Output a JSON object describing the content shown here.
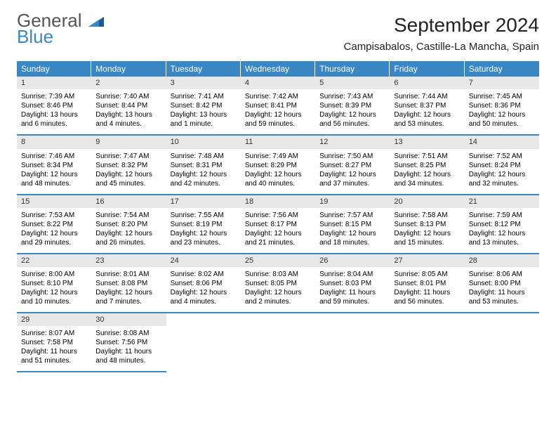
{
  "logo": {
    "word1": "General",
    "word2": "Blue"
  },
  "header": {
    "title": "September 2024",
    "subtitle": "Campisabalos, Castille-La Mancha, Spain"
  },
  "colors": {
    "accent": "#3a87c6",
    "headerText": "#ffffff",
    "dayBar": "#e8e8e8",
    "background": "#ffffff"
  },
  "weekdays": [
    "Sunday",
    "Monday",
    "Tuesday",
    "Wednesday",
    "Thursday",
    "Friday",
    "Saturday"
  ],
  "days": [
    {
      "n": "1",
      "sunrise": "Sunrise: 7:39 AM",
      "sunset": "Sunset: 8:46 PM",
      "daylight": "Daylight: 13 hours and 6 minutes."
    },
    {
      "n": "2",
      "sunrise": "Sunrise: 7:40 AM",
      "sunset": "Sunset: 8:44 PM",
      "daylight": "Daylight: 13 hours and 4 minutes."
    },
    {
      "n": "3",
      "sunrise": "Sunrise: 7:41 AM",
      "sunset": "Sunset: 8:42 PM",
      "daylight": "Daylight: 13 hours and 1 minute."
    },
    {
      "n": "4",
      "sunrise": "Sunrise: 7:42 AM",
      "sunset": "Sunset: 8:41 PM",
      "daylight": "Daylight: 12 hours and 59 minutes."
    },
    {
      "n": "5",
      "sunrise": "Sunrise: 7:43 AM",
      "sunset": "Sunset: 8:39 PM",
      "daylight": "Daylight: 12 hours and 56 minutes."
    },
    {
      "n": "6",
      "sunrise": "Sunrise: 7:44 AM",
      "sunset": "Sunset: 8:37 PM",
      "daylight": "Daylight: 12 hours and 53 minutes."
    },
    {
      "n": "7",
      "sunrise": "Sunrise: 7:45 AM",
      "sunset": "Sunset: 8:36 PM",
      "daylight": "Daylight: 12 hours and 50 minutes."
    },
    {
      "n": "8",
      "sunrise": "Sunrise: 7:46 AM",
      "sunset": "Sunset: 8:34 PM",
      "daylight": "Daylight: 12 hours and 48 minutes."
    },
    {
      "n": "9",
      "sunrise": "Sunrise: 7:47 AM",
      "sunset": "Sunset: 8:32 PM",
      "daylight": "Daylight: 12 hours and 45 minutes."
    },
    {
      "n": "10",
      "sunrise": "Sunrise: 7:48 AM",
      "sunset": "Sunset: 8:31 PM",
      "daylight": "Daylight: 12 hours and 42 minutes."
    },
    {
      "n": "11",
      "sunrise": "Sunrise: 7:49 AM",
      "sunset": "Sunset: 8:29 PM",
      "daylight": "Daylight: 12 hours and 40 minutes."
    },
    {
      "n": "12",
      "sunrise": "Sunrise: 7:50 AM",
      "sunset": "Sunset: 8:27 PM",
      "daylight": "Daylight: 12 hours and 37 minutes."
    },
    {
      "n": "13",
      "sunrise": "Sunrise: 7:51 AM",
      "sunset": "Sunset: 8:25 PM",
      "daylight": "Daylight: 12 hours and 34 minutes."
    },
    {
      "n": "14",
      "sunrise": "Sunrise: 7:52 AM",
      "sunset": "Sunset: 8:24 PM",
      "daylight": "Daylight: 12 hours and 32 minutes."
    },
    {
      "n": "15",
      "sunrise": "Sunrise: 7:53 AM",
      "sunset": "Sunset: 8:22 PM",
      "daylight": "Daylight: 12 hours and 29 minutes."
    },
    {
      "n": "16",
      "sunrise": "Sunrise: 7:54 AM",
      "sunset": "Sunset: 8:20 PM",
      "daylight": "Daylight: 12 hours and 26 minutes."
    },
    {
      "n": "17",
      "sunrise": "Sunrise: 7:55 AM",
      "sunset": "Sunset: 8:19 PM",
      "daylight": "Daylight: 12 hours and 23 minutes."
    },
    {
      "n": "18",
      "sunrise": "Sunrise: 7:56 AM",
      "sunset": "Sunset: 8:17 PM",
      "daylight": "Daylight: 12 hours and 21 minutes."
    },
    {
      "n": "19",
      "sunrise": "Sunrise: 7:57 AM",
      "sunset": "Sunset: 8:15 PM",
      "daylight": "Daylight: 12 hours and 18 minutes."
    },
    {
      "n": "20",
      "sunrise": "Sunrise: 7:58 AM",
      "sunset": "Sunset: 8:13 PM",
      "daylight": "Daylight: 12 hours and 15 minutes."
    },
    {
      "n": "21",
      "sunrise": "Sunrise: 7:59 AM",
      "sunset": "Sunset: 8:12 PM",
      "daylight": "Daylight: 12 hours and 13 minutes."
    },
    {
      "n": "22",
      "sunrise": "Sunrise: 8:00 AM",
      "sunset": "Sunset: 8:10 PM",
      "daylight": "Daylight: 12 hours and 10 minutes."
    },
    {
      "n": "23",
      "sunrise": "Sunrise: 8:01 AM",
      "sunset": "Sunset: 8:08 PM",
      "daylight": "Daylight: 12 hours and 7 minutes."
    },
    {
      "n": "24",
      "sunrise": "Sunrise: 8:02 AM",
      "sunset": "Sunset: 8:06 PM",
      "daylight": "Daylight: 12 hours and 4 minutes."
    },
    {
      "n": "25",
      "sunrise": "Sunrise: 8:03 AM",
      "sunset": "Sunset: 8:05 PM",
      "daylight": "Daylight: 12 hours and 2 minutes."
    },
    {
      "n": "26",
      "sunrise": "Sunrise: 8:04 AM",
      "sunset": "Sunset: 8:03 PM",
      "daylight": "Daylight: 11 hours and 59 minutes."
    },
    {
      "n": "27",
      "sunrise": "Sunrise: 8:05 AM",
      "sunset": "Sunset: 8:01 PM",
      "daylight": "Daylight: 11 hours and 56 minutes."
    },
    {
      "n": "28",
      "sunrise": "Sunrise: 8:06 AM",
      "sunset": "Sunset: 8:00 PM",
      "daylight": "Daylight: 11 hours and 53 minutes."
    },
    {
      "n": "29",
      "sunrise": "Sunrise: 8:07 AM",
      "sunset": "Sunset: 7:58 PM",
      "daylight": "Daylight: 11 hours and 51 minutes."
    },
    {
      "n": "30",
      "sunrise": "Sunrise: 8:08 AM",
      "sunset": "Sunset: 7:56 PM",
      "daylight": "Daylight: 11 hours and 48 minutes."
    }
  ]
}
